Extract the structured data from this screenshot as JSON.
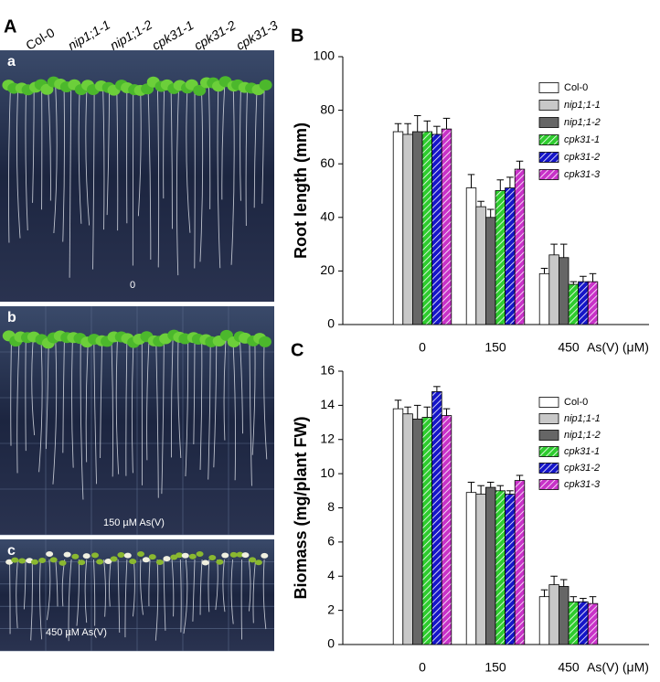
{
  "photo_panel": {
    "panel_label": "A",
    "column_labels": [
      {
        "text": "Col-0",
        "italic": false
      },
      {
        "text": "nip1;1-1",
        "italic": true
      },
      {
        "text": "nip1;1-2",
        "italic": true
      },
      {
        "text": "cpk31-1",
        "italic": true
      },
      {
        "text": "cpk31-2",
        "italic": true
      },
      {
        "text": "cpk31-3",
        "italic": true
      }
    ],
    "panels": [
      {
        "label": "a",
        "caption": "0"
      },
      {
        "label": "b",
        "caption": "150 µM As(V)"
      },
      {
        "label": "c",
        "caption": "450 µM As(V)"
      }
    ]
  },
  "chart_data": [
    {
      "type": "bar",
      "panel_label": "B",
      "ylabel": "Root length (mm)",
      "xlabel": "As(V) (μM)",
      "categories": [
        "0",
        "150",
        "450"
      ],
      "ylim": [
        0,
        100
      ],
      "yticks": [
        0,
        20,
        40,
        60,
        80,
        100
      ],
      "legend": "upper right",
      "series": [
        {
          "name": "Col-0",
          "color": "#ffffff",
          "hatch": false,
          "italic": false,
          "values": [
            72,
            51,
            19
          ],
          "errors": [
            3,
            5,
            2
          ]
        },
        {
          "name": "nip1;1-1",
          "color": "#c8c8c8",
          "hatch": false,
          "italic": true,
          "values": [
            71,
            44,
            26
          ],
          "errors": [
            4,
            2,
            4
          ]
        },
        {
          "name": "nip1;1-2",
          "color": "#666666",
          "hatch": false,
          "italic": true,
          "values": [
            72,
            40,
            25
          ],
          "errors": [
            6,
            3,
            5
          ]
        },
        {
          "name": "cpk31-1",
          "color": "#2ecc2e",
          "hatch": true,
          "italic": true,
          "values": [
            72,
            50,
            15
          ],
          "errors": [
            4,
            4,
            1
          ]
        },
        {
          "name": "cpk31-2",
          "color": "#1515c8",
          "hatch": true,
          "italic": true,
          "values": [
            71,
            51,
            16
          ],
          "errors": [
            3,
            4,
            2
          ]
        },
        {
          "name": "cpk31-3",
          "color": "#c832c8",
          "hatch": true,
          "italic": true,
          "values": [
            73,
            58,
            16
          ],
          "errors": [
            4,
            3,
            3
          ]
        }
      ]
    },
    {
      "type": "bar",
      "panel_label": "C",
      "ylabel": "Biomass (mg/plant FW)",
      "xlabel": "As(V) (μM)",
      "categories": [
        "0",
        "150",
        "450"
      ],
      "ylim": [
        0,
        16
      ],
      "yticks": [
        0,
        2,
        4,
        6,
        8,
        10,
        12,
        14,
        16
      ],
      "legend": "upper right",
      "series": [
        {
          "name": "Col-0",
          "color": "#ffffff",
          "hatch": false,
          "italic": false,
          "values": [
            13.8,
            8.9,
            2.8
          ],
          "errors": [
            0.5,
            0.6,
            0.4
          ]
        },
        {
          "name": "nip1;1-1",
          "color": "#c8c8c8",
          "hatch": false,
          "italic": true,
          "values": [
            13.5,
            8.8,
            3.5
          ],
          "errors": [
            0.4,
            0.5,
            0.5
          ]
        },
        {
          "name": "nip1;1-2",
          "color": "#666666",
          "hatch": false,
          "italic": true,
          "values": [
            13.2,
            9.2,
            3.4
          ],
          "errors": [
            0.8,
            0.3,
            0.4
          ]
        },
        {
          "name": "cpk31-1",
          "color": "#2ecc2e",
          "hatch": true,
          "italic": true,
          "values": [
            13.3,
            9.0,
            2.5
          ],
          "errors": [
            0.6,
            0.3,
            0.3
          ]
        },
        {
          "name": "cpk31-2",
          "color": "#1515c8",
          "hatch": true,
          "italic": true,
          "values": [
            14.8,
            8.8,
            2.5
          ],
          "errors": [
            0.3,
            0.2,
            0.2
          ]
        },
        {
          "name": "cpk31-3",
          "color": "#c832c8",
          "hatch": true,
          "italic": true,
          "values": [
            13.4,
            9.6,
            2.4
          ],
          "errors": [
            0.4,
            0.3,
            0.4
          ]
        }
      ]
    }
  ]
}
